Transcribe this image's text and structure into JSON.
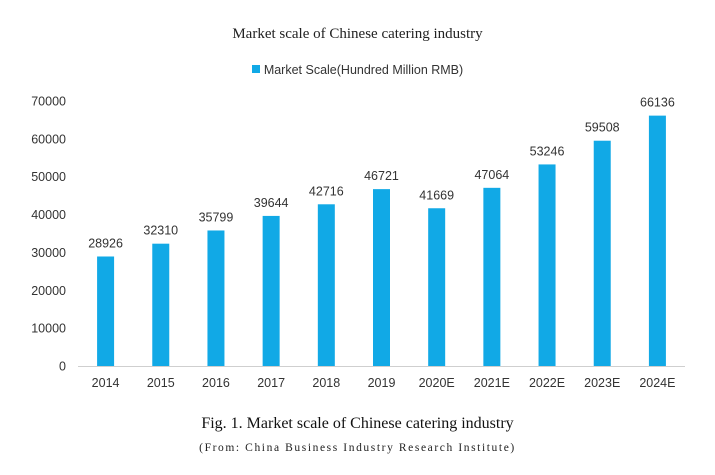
{
  "chart_data": {
    "type": "bar",
    "title": "Market scale of Chinese catering industry",
    "categories": [
      "2014",
      "2015",
      "2016",
      "2017",
      "2018",
      "2019",
      "2020E",
      "2021E",
      "2022E",
      "2023E",
      "2024E"
    ],
    "series": [
      {
        "name": "Market Scale(Hundred Million RMB)",
        "values": [
          28926,
          32310,
          35799,
          39644,
          42716,
          46721,
          41669,
          47064,
          53246,
          59508,
          66136
        ]
      }
    ],
    "data_labels": [
      "28926",
      "32310",
      "35799",
      "39644",
      "42716",
      "46721",
      "41669",
      "47064",
      "53246",
      "59508",
      "66136"
    ],
    "y_ticks": [
      "0",
      "10000",
      "20000",
      "30000",
      "40000",
      "50000",
      "60000",
      "70000"
    ],
    "ylim": [
      0,
      70000
    ],
    "xlabel": "",
    "ylabel": "",
    "grid": false,
    "legend_position": "top",
    "bar_color": "#11a9e6"
  },
  "figure": {
    "caption": "Fig. 1. Market scale of Chinese catering industry",
    "source": "(From: China Business Industry Research Institute)"
  }
}
